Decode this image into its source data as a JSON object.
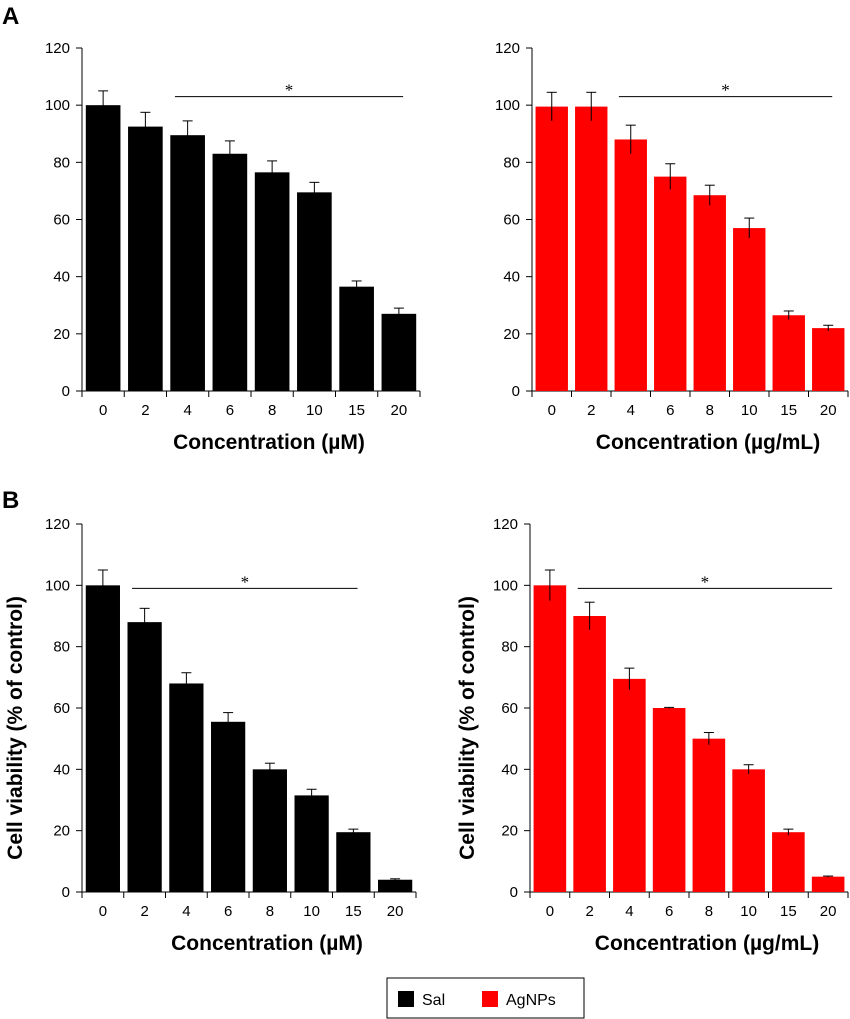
{
  "figure": {
    "panel_labels": [
      "A",
      "B"
    ],
    "legend": [
      {
        "label": "Sal",
        "color": "#000000"
      },
      {
        "label": "AgNPs",
        "color": "#ff0000"
      }
    ]
  },
  "chart_data": [
    {
      "type": "bar",
      "panel": "A",
      "categories": [
        "0",
        "2",
        "4",
        "6",
        "8",
        "10",
        "15",
        "20"
      ],
      "values": [
        100,
        92.5,
        89.5,
        83,
        76.5,
        69.5,
        36.5,
        27
      ],
      "errors": [
        5,
        5,
        5,
        4.5,
        4,
        3.5,
        2,
        2
      ],
      "color": "#000000",
      "xlabel": "Concentration (µM)",
      "ylabel": "",
      "ylim": [
        0,
        120
      ],
      "yticks": [
        0,
        20,
        40,
        60,
        80,
        100,
        120
      ],
      "significance": {
        "label": "*",
        "from_category": "4",
        "to_category": "20",
        "y": 103
      }
    },
    {
      "type": "bar",
      "panel": "A",
      "categories": [
        "0",
        "2",
        "4",
        "6",
        "8",
        "10",
        "15",
        "20"
      ],
      "values": [
        99.5,
        99.5,
        88,
        75,
        68.5,
        57,
        26.5,
        22
      ],
      "errors": [
        5,
        5,
        5,
        4.5,
        3.5,
        3.5,
        1.5,
        1
      ],
      "color": "#ff0000",
      "xlabel": "Concentration (µg/mL)",
      "ylabel": "",
      "ylim": [
        0,
        120
      ],
      "yticks": [
        0,
        20,
        40,
        60,
        80,
        100,
        120
      ],
      "significance": {
        "label": "*",
        "from_category": "4",
        "to_category": "20",
        "y": 103
      }
    },
    {
      "type": "bar",
      "panel": "B",
      "categories": [
        "0",
        "2",
        "4",
        "6",
        "8",
        "10",
        "15",
        "20"
      ],
      "values": [
        100,
        88,
        68,
        55.5,
        40,
        31.5,
        19.5,
        4
      ],
      "errors": [
        5,
        4.5,
        3.5,
        3,
        2,
        2,
        1,
        0.3
      ],
      "color": "#000000",
      "xlabel": "Concentration (µM)",
      "ylabel": "Cell viability (% of control)",
      "ylim": [
        0,
        120
      ],
      "yticks": [
        0,
        20,
        40,
        60,
        80,
        100,
        120
      ],
      "significance": {
        "label": "*",
        "from_category": "2",
        "to_category": "15",
        "y": 99
      }
    },
    {
      "type": "bar",
      "panel": "B",
      "categories": [
        "0",
        "2",
        "4",
        "6",
        "8",
        "10",
        "15",
        "20"
      ],
      "values": [
        100,
        90,
        69.5,
        60,
        50,
        40,
        19.5,
        5
      ],
      "errors": [
        5,
        4.5,
        3.5,
        0.2,
        2,
        1.5,
        1,
        0.2
      ],
      "color": "#ff0000",
      "xlabel": "Concentration (µg/mL)",
      "ylabel": "Cell viability (% of control)",
      "ylim": [
        0,
        120
      ],
      "yticks": [
        0,
        20,
        40,
        60,
        80,
        100,
        120
      ],
      "significance": {
        "label": "*",
        "from_category": "2",
        "to_category": "20",
        "y": 99
      }
    }
  ]
}
